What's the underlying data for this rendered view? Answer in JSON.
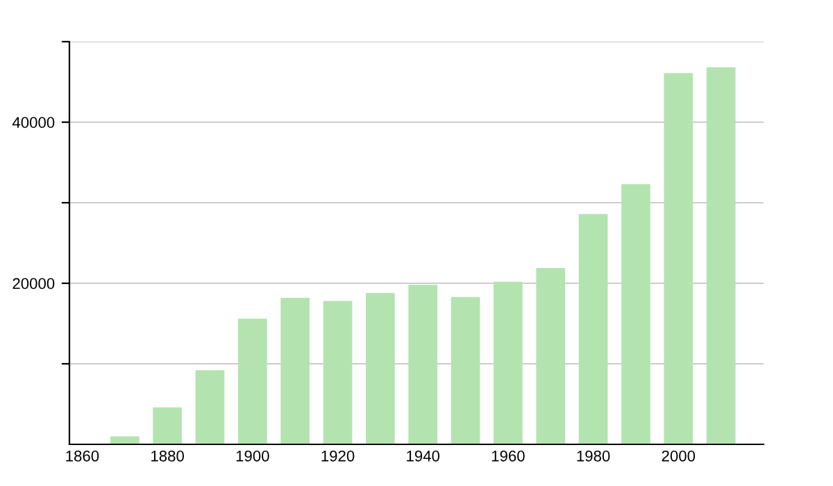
{
  "chart_data": {
    "type": "bar",
    "x": [
      1870,
      1880,
      1890,
      1900,
      1910,
      1920,
      1930,
      1940,
      1950,
      1960,
      1970,
      1980,
      1990,
      2000,
      2010
    ],
    "values": [
      1000,
      4600,
      9200,
      15600,
      18200,
      17800,
      18800,
      19800,
      18300,
      20200,
      21900,
      28600,
      32300,
      46100,
      46800
    ],
    "color": "#b3e4b0",
    "xlim": [
      1857,
      2020
    ],
    "xticks": [
      1860,
      1880,
      1900,
      1920,
      1940,
      1960,
      1980,
      2000
    ],
    "ylim": [
      0,
      50000
    ],
    "yticks": [
      {
        "value": 10000,
        "label": null
      },
      20000,
      {
        "value": 30000,
        "label": null
      },
      40000,
      {
        "value": 50000,
        "label": null
      }
    ],
    "grid": "y"
  }
}
